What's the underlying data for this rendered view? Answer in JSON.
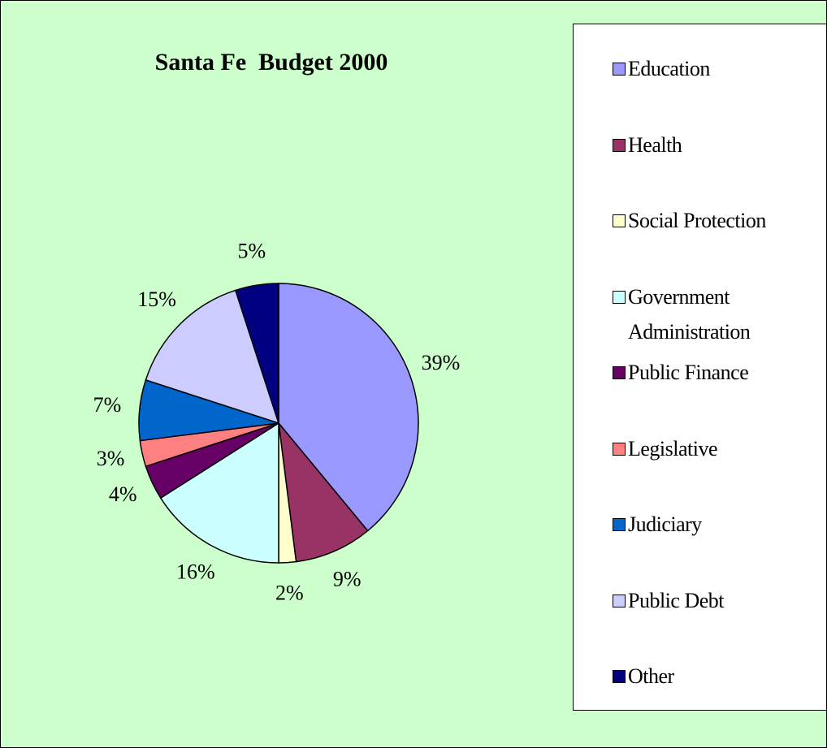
{
  "chart_data": {
    "type": "pie",
    "title": "Santa Fe  Budget 2000",
    "categories": [
      "Education",
      "Health",
      "Social Protection",
      "Government Administration",
      "Public Finance",
      "Legislative",
      "Judiciary",
      "Public Debt",
      "Other"
    ],
    "values": [
      39,
      9,
      2,
      16,
      4,
      3,
      7,
      15,
      5
    ],
    "value_labels": [
      "39%",
      "9%",
      "2%",
      "16%",
      "4%",
      "3%",
      "7%",
      "15%",
      "5%"
    ],
    "colors": [
      "#9999ff",
      "#993366",
      "#ffffcc",
      "#ccffff",
      "#660066",
      "#ff8080",
      "#0066cc",
      "#ccccff",
      "#000080"
    ],
    "legend": "right"
  }
}
